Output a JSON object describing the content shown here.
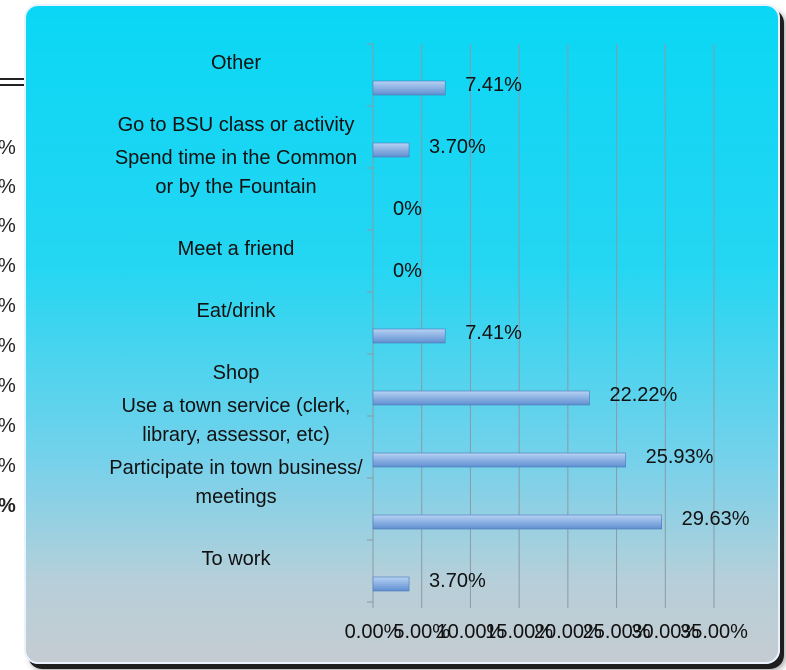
{
  "chart_data": {
    "type": "bar",
    "orientation": "horizontal",
    "categories": [
      "To work",
      "Participate in town business/ meetings",
      "Use a town service (clerk, library, assessor, etc)",
      "Shop",
      "Eat/drink",
      "Meet a friend",
      "Spend time in the Common or by the Fountain",
      "Go to BSU class or activity",
      "Other"
    ],
    "category_lines": [
      [
        "To work"
      ],
      [
        "Participate in town business/",
        "meetings"
      ],
      [
        "Use a town service (clerk,",
        "library, assessor, etc)"
      ],
      [
        "Shop"
      ],
      [
        "Eat/drink"
      ],
      [
        "Meet a friend"
      ],
      [
        "Spend time in the Common",
        "or by the Fountain"
      ],
      [
        "Go to BSU class or activity"
      ],
      [
        "Other"
      ]
    ],
    "values": [
      3.7,
      29.63,
      25.93,
      22.22,
      7.41,
      0,
      0,
      3.7,
      7.41
    ],
    "value_labels": [
      "3.70%",
      "29.63%",
      "25.93%",
      "22.22%",
      "7.41%",
      "0%",
      "0%",
      "3.70%",
      "7.41%"
    ],
    "x_ticks": [
      "0.00%",
      "5.00%",
      "10.00%",
      "15.00%",
      "20.00%",
      "25.00%",
      "30.00%",
      "35.00%"
    ],
    "xlim": [
      0,
      35
    ],
    "grid": true,
    "title": "",
    "xlabel": "",
    "ylabel": "",
    "colors": {
      "bar_top": "#b7d2f4",
      "bar_bottom": "#5f8fd0",
      "bar_stroke": "#4a78b8",
      "grid": "#8a9aa6"
    }
  },
  "background": {
    "left_edge_glyphs": [
      "%",
      "%",
      "%",
      "%",
      "%",
      "%",
      "%",
      "%",
      "%",
      "%"
    ]
  }
}
